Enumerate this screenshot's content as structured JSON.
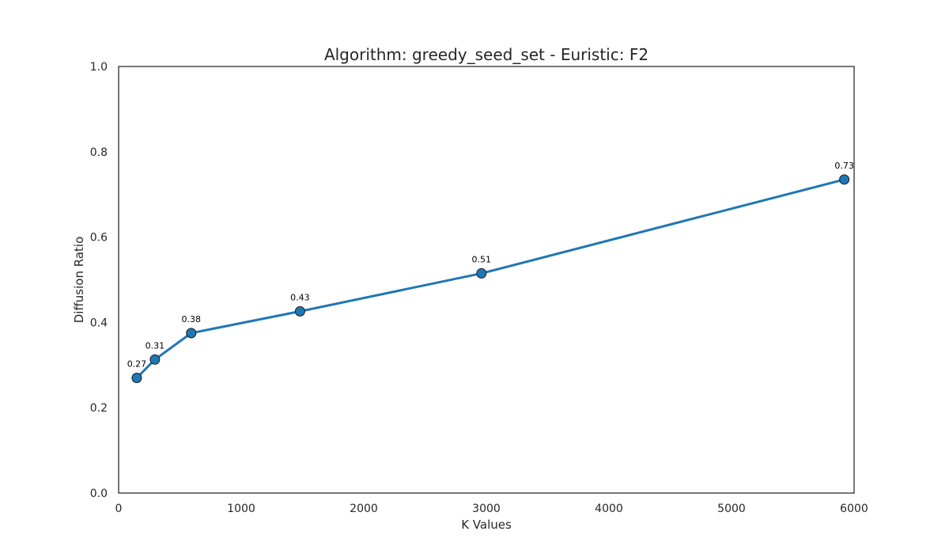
{
  "chart_data": {
    "type": "line",
    "title": "Algorithm: greedy_seed_set - Euristic: F2",
    "xlabel": "K Values",
    "ylabel": "Diffusion Ratio",
    "xlim": [
      0,
      6000
    ],
    "ylim": [
      0.0,
      1.0
    ],
    "x_ticks": [
      "0",
      "1000",
      "2000",
      "3000",
      "4000",
      "5000",
      "6000"
    ],
    "y_ticks": [
      "0.0",
      "0.2",
      "0.4",
      "0.6",
      "0.8",
      "1.0"
    ],
    "grid": false,
    "legend": "none",
    "series": [
      {
        "color": "#1f77b4",
        "marker": "circle",
        "x": [
          148,
          296,
          592,
          1480,
          2960,
          5920
        ],
        "y": [
          0.27,
          0.313,
          0.375,
          0.426,
          0.515,
          0.735
        ],
        "labels": [
          "0.27",
          "0.31",
          "0.38",
          "0.43",
          "0.51",
          "0.73"
        ]
      }
    ]
  }
}
